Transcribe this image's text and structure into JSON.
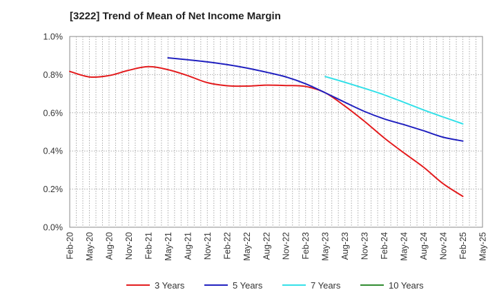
{
  "chart_data": {
    "type": "line",
    "title": "[3222]  Trend of Mean of Net Income Margin",
    "xlabel": "",
    "ylabel": "",
    "x_ticks": [
      "Feb-20",
      "May-20",
      "Aug-20",
      "Nov-20",
      "Feb-21",
      "May-21",
      "Aug-21",
      "Nov-21",
      "Feb-22",
      "May-22",
      "Aug-22",
      "Nov-22",
      "Feb-23",
      "May-23",
      "Aug-23",
      "Nov-23",
      "Feb-24",
      "May-24",
      "Aug-24",
      "Nov-24",
      "Feb-25",
      "May-25"
    ],
    "y_ticks": [
      "0.0%",
      "0.2%",
      "0.4%",
      "0.6%",
      "0.8%",
      "1.0%"
    ],
    "ylim": [
      0,
      1.0
    ],
    "grid": true,
    "legend_position": "bottom",
    "series": [
      {
        "name": "3 Years",
        "color": "#e31a1c",
        "x": [
          "Feb-20",
          "May-20",
          "Aug-20",
          "Nov-20",
          "Feb-21",
          "May-21",
          "Aug-21",
          "Nov-21",
          "Feb-22",
          "May-22",
          "Aug-22",
          "Nov-22",
          "Feb-23",
          "May-23",
          "Aug-23",
          "Nov-23",
          "Feb-24",
          "May-24",
          "Aug-24",
          "Nov-24",
          "Feb-25"
        ],
        "values": [
          0.817,
          0.788,
          0.795,
          0.823,
          0.842,
          0.826,
          0.795,
          0.758,
          0.742,
          0.74,
          0.745,
          0.743,
          0.738,
          0.705,
          0.635,
          0.555,
          0.468,
          0.39,
          0.315,
          0.228,
          0.162
        ]
      },
      {
        "name": "5 Years",
        "color": "#1f1fbf",
        "x": [
          "May-21",
          "Aug-21",
          "Nov-21",
          "Feb-22",
          "May-22",
          "Aug-22",
          "Nov-22",
          "Feb-23",
          "May-23",
          "Aug-23",
          "Nov-23",
          "Feb-24",
          "May-24",
          "Aug-24",
          "Nov-24",
          "Feb-25"
        ],
        "values": [
          0.888,
          0.878,
          0.867,
          0.853,
          0.835,
          0.813,
          0.788,
          0.752,
          0.705,
          0.655,
          0.607,
          0.568,
          0.538,
          0.506,
          0.472,
          0.452
        ]
      },
      {
        "name": "7 Years",
        "color": "#33e0e8",
        "x": [
          "May-23",
          "Aug-23",
          "Nov-23",
          "Feb-24",
          "May-24",
          "Aug-24",
          "Nov-24",
          "Feb-25"
        ],
        "values": [
          0.79,
          0.76,
          0.728,
          0.694,
          0.655,
          0.615,
          0.578,
          0.542
        ]
      },
      {
        "name": "10 Years",
        "color": "#2e8b2e",
        "x": [],
        "values": []
      }
    ]
  }
}
